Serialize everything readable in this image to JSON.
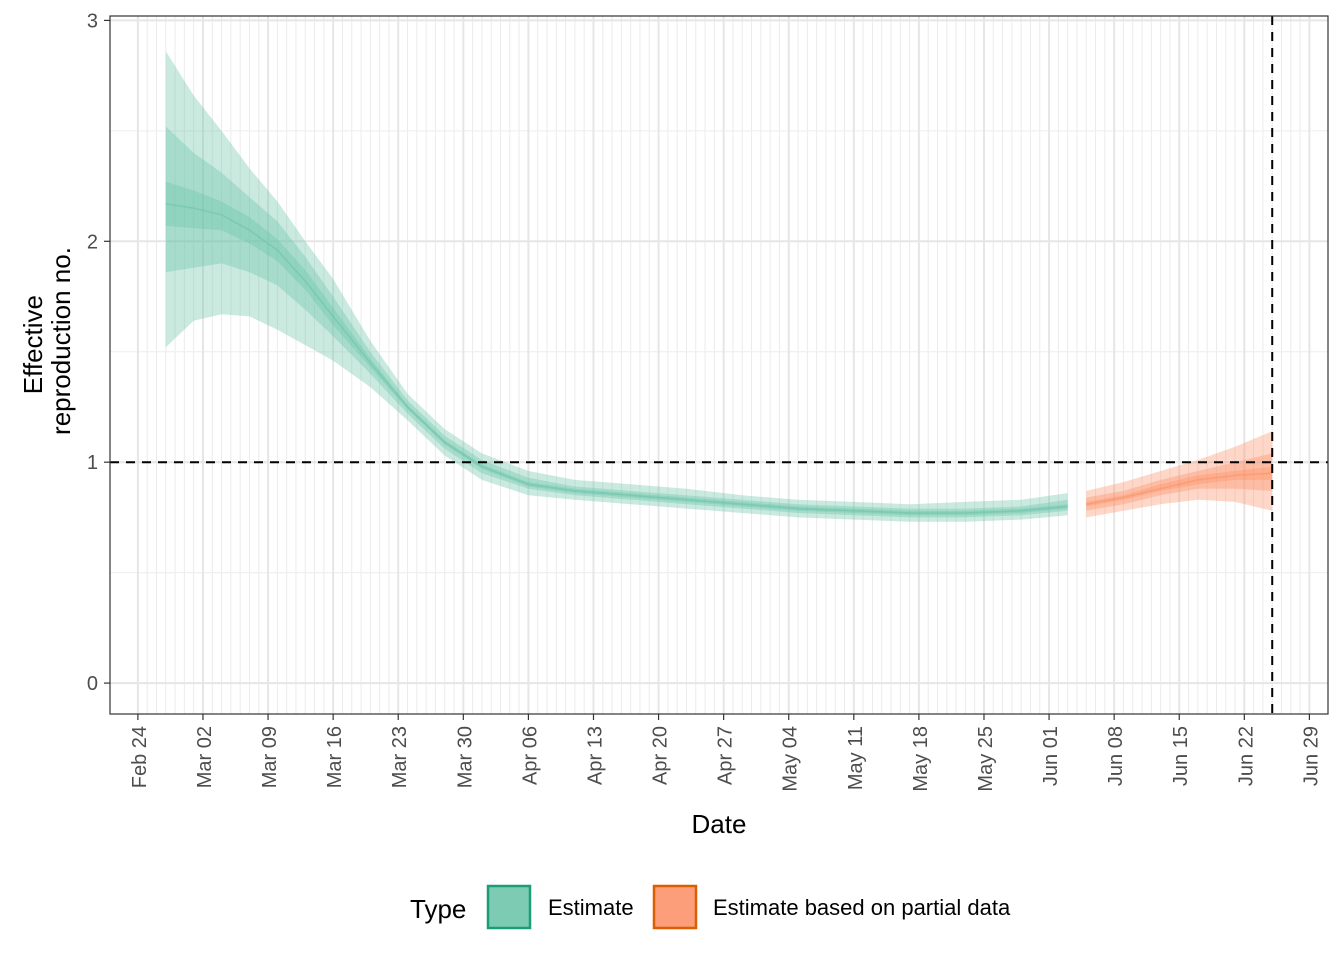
{
  "chart_data": {
    "type": "area",
    "xlabel": "Date",
    "ylabel_lines": [
      "Effective",
      "reproduction no."
    ],
    "xlim": [
      "2020-02-21",
      "2020-07-01"
    ],
    "ylim": [
      -0.14,
      3.02
    ],
    "x_ticks": [
      {
        "date": "2020-02-24",
        "label": "Feb 24"
      },
      {
        "date": "2020-03-02",
        "label": "Mar 02"
      },
      {
        "date": "2020-03-09",
        "label": "Mar 09"
      },
      {
        "date": "2020-03-16",
        "label": "Mar 16"
      },
      {
        "date": "2020-03-23",
        "label": "Mar 23"
      },
      {
        "date": "2020-03-30",
        "label": "Mar 30"
      },
      {
        "date": "2020-04-06",
        "label": "Apr 06"
      },
      {
        "date": "2020-04-13",
        "label": "Apr 13"
      },
      {
        "date": "2020-04-20",
        "label": "Apr 20"
      },
      {
        "date": "2020-04-27",
        "label": "Apr 27"
      },
      {
        "date": "2020-05-04",
        "label": "May 04"
      },
      {
        "date": "2020-05-11",
        "label": "May 11"
      },
      {
        "date": "2020-05-18",
        "label": "May 18"
      },
      {
        "date": "2020-05-25",
        "label": "May 25"
      },
      {
        "date": "2020-06-01",
        "label": "Jun 01"
      },
      {
        "date": "2020-06-08",
        "label": "Jun 08"
      },
      {
        "date": "2020-06-15",
        "label": "Jun 15"
      },
      {
        "date": "2020-06-22",
        "label": "Jun 22"
      },
      {
        "date": "2020-06-29",
        "label": "Jun 29"
      }
    ],
    "y_ticks": [
      {
        "value": 0,
        "label": "0"
      },
      {
        "value": 1,
        "label": "1"
      },
      {
        "value": 2,
        "label": "2"
      },
      {
        "value": 3,
        "label": "3"
      }
    ],
    "reference_lines": {
      "horizontal_y": 1,
      "vertical_x": "2020-06-25"
    },
    "grid": true,
    "legend": {
      "title": "Type",
      "position": "bottom"
    },
    "series": [
      {
        "name": "Estimate",
        "color": "#1B9E77",
        "fill": "#66C2A5",
        "points": [
          {
            "date": "2020-02-27",
            "median": 2.17,
            "lower90": 1.52,
            "upper90": 2.86,
            "lower50": 1.86,
            "upper50": 2.52,
            "lower20": 2.07,
            "upper20": 2.27
          },
          {
            "date": "2020-03-01",
            "median": 2.15,
            "lower90": 1.64,
            "upper90": 2.66,
            "lower50": 1.88,
            "upper50": 2.4,
            "lower20": 2.06,
            "upper20": 2.23
          },
          {
            "date": "2020-03-04",
            "median": 2.12,
            "lower90": 1.67,
            "upper90": 2.5,
            "lower50": 1.9,
            "upper50": 2.31,
            "lower20": 2.05,
            "upper20": 2.18
          },
          {
            "date": "2020-03-07",
            "median": 2.05,
            "lower90": 1.66,
            "upper90": 2.33,
            "lower50": 1.86,
            "upper50": 2.2,
            "lower20": 1.99,
            "upper20": 2.11
          },
          {
            "date": "2020-03-10",
            "median": 1.96,
            "lower90": 1.6,
            "upper90": 2.18,
            "lower50": 1.8,
            "upper50": 2.09,
            "lower20": 1.91,
            "upper20": 2.01
          },
          {
            "date": "2020-03-13",
            "median": 1.82,
            "lower90": 1.53,
            "upper90": 2.0,
            "lower50": 1.69,
            "upper50": 1.93,
            "lower20": 1.78,
            "upper20": 1.87
          },
          {
            "date": "2020-03-16",
            "median": 1.66,
            "lower90": 1.46,
            "upper90": 1.83,
            "lower50": 1.57,
            "upper50": 1.75,
            "lower20": 1.62,
            "upper20": 1.7
          },
          {
            "date": "2020-03-20",
            "median": 1.45,
            "lower90": 1.34,
            "upper90": 1.55,
            "lower50": 1.4,
            "upper50": 1.5,
            "lower20": 1.43,
            "upper20": 1.47
          },
          {
            "date": "2020-03-24",
            "median": 1.25,
            "lower90": 1.19,
            "upper90": 1.31,
            "lower50": 1.22,
            "upper50": 1.28,
            "lower20": 1.24,
            "upper20": 1.26
          },
          {
            "date": "2020-03-28",
            "median": 1.09,
            "lower90": 1.03,
            "upper90": 1.15,
            "lower50": 1.06,
            "upper50": 1.12,
            "lower20": 1.08,
            "upper20": 1.1
          },
          {
            "date": "2020-04-01",
            "median": 0.98,
            "lower90": 0.92,
            "upper90": 1.04,
            "lower50": 0.95,
            "upper50": 1.01,
            "lower20": 0.97,
            "upper20": 0.99
          },
          {
            "date": "2020-04-06",
            "median": 0.9,
            "lower90": 0.85,
            "upper90": 0.96,
            "lower50": 0.88,
            "upper50": 0.93,
            "lower20": 0.89,
            "upper20": 0.91
          },
          {
            "date": "2020-04-11",
            "median": 0.87,
            "lower90": 0.83,
            "upper90": 0.92,
            "lower50": 0.85,
            "upper50": 0.89,
            "lower20": 0.86,
            "upper20": 0.88
          },
          {
            "date": "2020-04-17",
            "median": 0.85,
            "lower90": 0.81,
            "upper90": 0.9,
            "lower50": 0.83,
            "upper50": 0.87,
            "lower20": 0.84,
            "upper20": 0.86
          },
          {
            "date": "2020-04-23",
            "median": 0.83,
            "lower90": 0.79,
            "upper90": 0.88,
            "lower50": 0.81,
            "upper50": 0.85,
            "lower20": 0.82,
            "upper20": 0.84
          },
          {
            "date": "2020-04-29",
            "median": 0.81,
            "lower90": 0.77,
            "upper90": 0.85,
            "lower50": 0.79,
            "upper50": 0.83,
            "lower20": 0.8,
            "upper20": 0.82
          },
          {
            "date": "2020-05-05",
            "median": 0.79,
            "lower90": 0.75,
            "upper90": 0.83,
            "lower50": 0.77,
            "upper50": 0.81,
            "lower20": 0.78,
            "upper20": 0.8
          },
          {
            "date": "2020-05-11",
            "median": 0.78,
            "lower90": 0.74,
            "upper90": 0.82,
            "lower50": 0.76,
            "upper50": 0.8,
            "lower20": 0.77,
            "upper20": 0.79
          },
          {
            "date": "2020-05-17",
            "median": 0.77,
            "lower90": 0.73,
            "upper90": 0.81,
            "lower50": 0.75,
            "upper50": 0.79,
            "lower20": 0.76,
            "upper20": 0.78
          },
          {
            "date": "2020-05-23",
            "median": 0.77,
            "lower90": 0.73,
            "upper90": 0.82,
            "lower50": 0.75,
            "upper50": 0.79,
            "lower20": 0.76,
            "upper20": 0.78
          },
          {
            "date": "2020-05-29",
            "median": 0.78,
            "lower90": 0.74,
            "upper90": 0.83,
            "lower50": 0.76,
            "upper50": 0.8,
            "lower20": 0.77,
            "upper20": 0.79
          },
          {
            "date": "2020-06-03",
            "median": 0.8,
            "lower90": 0.76,
            "upper90": 0.86,
            "lower50": 0.78,
            "upper50": 0.83,
            "lower20": 0.79,
            "upper20": 0.81
          }
        ]
      },
      {
        "name": "Estimate based on partial data",
        "color": "#D95F02",
        "fill": "#FC8D62",
        "points": [
          {
            "date": "2020-06-05",
            "median": 0.81,
            "lower90": 0.75,
            "upper90": 0.87,
            "lower50": 0.78,
            "upper50": 0.84,
            "lower20": 0.8,
            "upper20": 0.82
          },
          {
            "date": "2020-06-09",
            "median": 0.84,
            "lower90": 0.78,
            "upper90": 0.91,
            "lower50": 0.81,
            "upper50": 0.87,
            "lower20": 0.83,
            "upper20": 0.85
          },
          {
            "date": "2020-06-13",
            "median": 0.88,
            "lower90": 0.81,
            "upper90": 0.96,
            "lower50": 0.85,
            "upper50": 0.92,
            "lower20": 0.87,
            "upper20": 0.9
          },
          {
            "date": "2020-06-17",
            "median": 0.92,
            "lower90": 0.83,
            "upper90": 1.01,
            "lower50": 0.88,
            "upper50": 0.96,
            "lower20": 0.9,
            "upper20": 0.94
          },
          {
            "date": "2020-06-21",
            "median": 0.94,
            "lower90": 0.82,
            "upper90": 1.07,
            "lower50": 0.88,
            "upper50": 1.0,
            "lower20": 0.92,
            "upper20": 0.96
          },
          {
            "date": "2020-06-25",
            "median": 0.95,
            "lower90": 0.78,
            "upper90": 1.14,
            "lower50": 0.87,
            "upper50": 1.04,
            "lower20": 0.92,
            "upper20": 0.98
          }
        ]
      }
    ]
  }
}
